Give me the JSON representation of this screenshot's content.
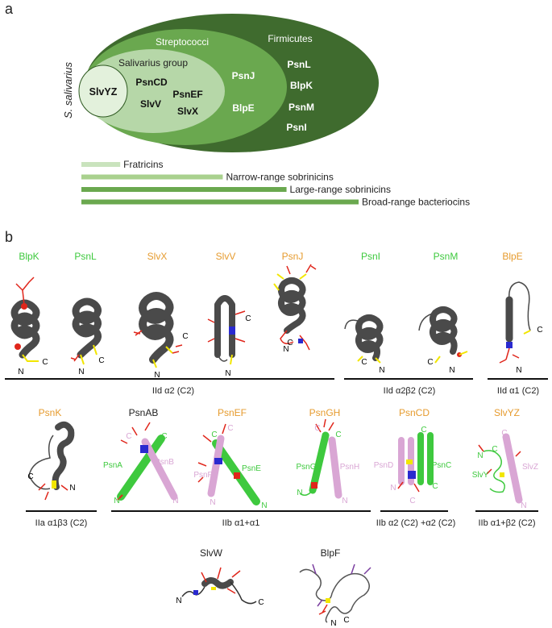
{
  "panel_a": {
    "label": "a",
    "species_label": "S. salivarius",
    "groups": {
      "firmicutes": "Firmicutes",
      "streptococci": "Streptococci",
      "salivarius": "Salivarius group"
    },
    "members": {
      "core": "SlvYZ",
      "salivarius": [
        "PsnCD",
        "SlvV",
        "PsnEF",
        "SlvX"
      ],
      "streptococci": [
        "PsnJ",
        "BlpE"
      ],
      "firmicutes": [
        "PsnL",
        "BlpK",
        "PsnM",
        "PsnI"
      ]
    },
    "ranges": [
      {
        "label": "Fratricins",
        "extent": 0.14
      },
      {
        "label": "Narrow-range sobrinicins",
        "extent": 0.51
      },
      {
        "label": "Large-range sobrinicins",
        "extent": 0.74
      },
      {
        "label": "Broad-range bacteriocins",
        "extent": 1.0
      }
    ],
    "colors": {
      "firmicutes": "#3f6b2e",
      "streptococci": "#6aa84f",
      "salivarius": "#b6d7a8",
      "core": "#e3f1dc",
      "bar1": "#c9e3bd",
      "bar2": "#a9d18e",
      "bar3": "#6aa84f",
      "bar4": "#6aa84f"
    }
  },
  "panel_b": {
    "label": "b",
    "colors": {
      "green": "#3ec93e",
      "orange": "#e69b2e",
      "black": "#222222",
      "helix_gray": "#4a4a4a",
      "helix_green": "#3ec93e",
      "helix_pink": "#d9a6d4",
      "red": "#e0261b",
      "yellow": "#f2e600",
      "blue": "#2a2acf"
    },
    "row1": {
      "names": [
        {
          "text": "BlpK",
          "color": "green"
        },
        {
          "text": "PsnL",
          "color": "green"
        },
        {
          "text": "SlvX",
          "color": "orange"
        },
        {
          "text": "SlvV",
          "color": "orange"
        },
        {
          "text": "PsnJ",
          "color": "orange"
        },
        {
          "text": "PsnI",
          "color": "green"
        },
        {
          "text": "PsnM",
          "color": "green"
        },
        {
          "text": "BlpE",
          "color": "orange"
        }
      ],
      "classes": [
        "IId α2 (C2)",
        "IId α2β2 (C2)",
        "IId α1 (C2)"
      ]
    },
    "row2": {
      "names": [
        {
          "text": "PsnK",
          "color": "orange"
        },
        {
          "text": "PsnAB",
          "color": "black"
        },
        {
          "text": "PsnEF",
          "color": "orange"
        },
        {
          "text": "PsnGH",
          "color": "orange"
        },
        {
          "text": "PsnCD",
          "color": "orange"
        },
        {
          "text": "SlvYZ",
          "color": "orange"
        }
      ],
      "chains": {
        "psnab": [
          "PsnA",
          "PsnB"
        ],
        "psnef": [
          "PsnF",
          "PsnE"
        ],
        "psngh": [
          "PsnG",
          "PsnH"
        ],
        "psncd": [
          "PsnD",
          "PsnC"
        ],
        "slvyz": [
          "SlvY",
          "SlvZ"
        ]
      },
      "classes": [
        "IIa α1β3 (C2)",
        "IIb α1+α1",
        "IIb α2 (C2) +α2 (C2)",
        "IIb α1+β2 (C2)"
      ]
    },
    "row3": {
      "names": [
        {
          "text": "SlvW",
          "color": "black"
        },
        {
          "text": "BlpF",
          "color": "black"
        }
      ]
    },
    "terminus": {
      "n": "N",
      "c": "C"
    }
  }
}
